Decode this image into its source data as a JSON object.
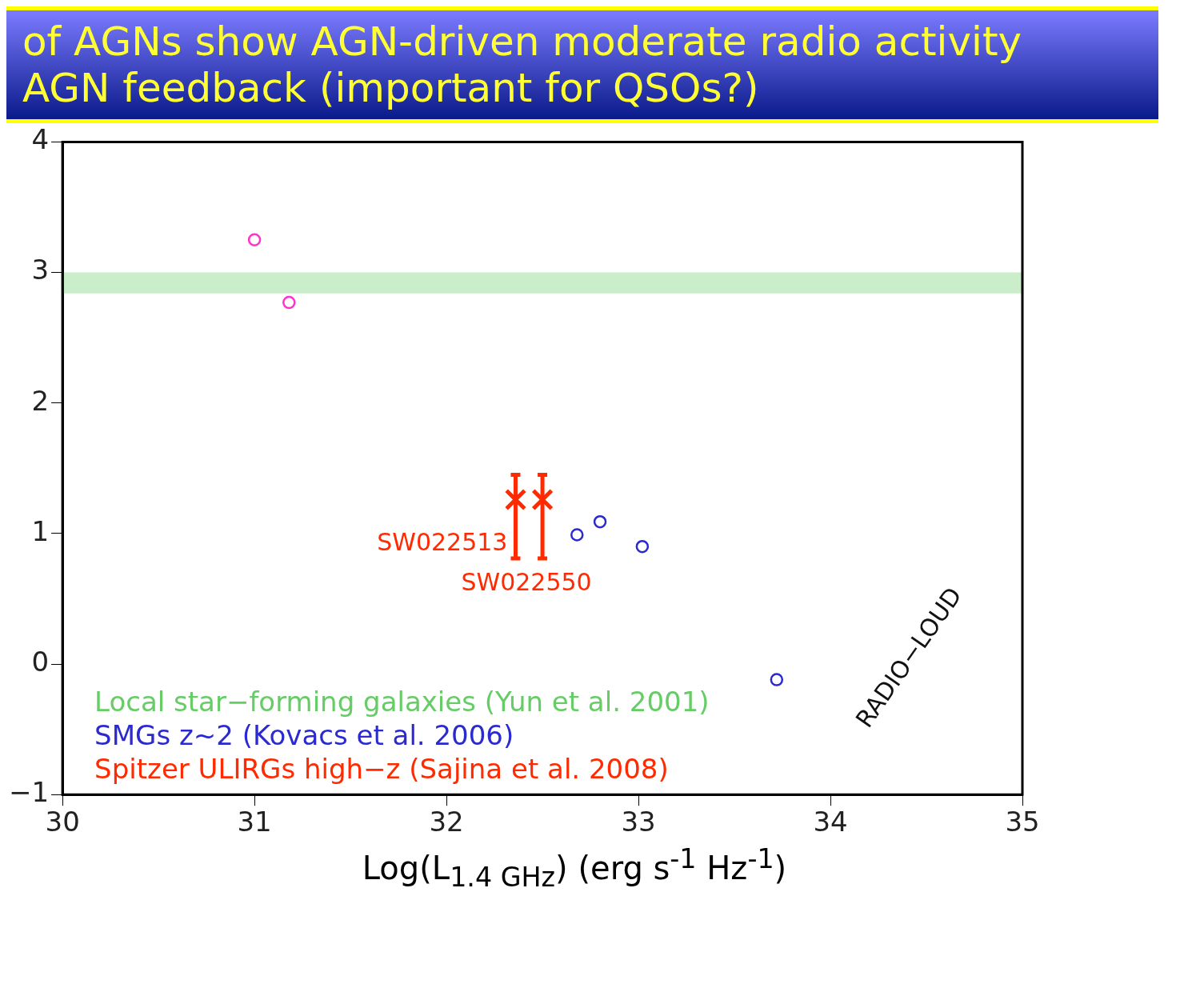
{
  "chart_data": {
    "type": "scatter",
    "title": "of AGNs show AGN-driven moderate radio activity",
    "subtitle": "AGN feedback (important for QSOs?)",
    "xlabel": "Log(L$_{1.4 GHz}$) (erg s$^{-1}$ Hz$^{-1}$)",
    "xlim": [
      30,
      35
    ],
    "xticks": [
      30,
      31,
      32,
      33,
      34,
      35
    ],
    "ylim": [
      -1,
      4
    ],
    "yticks": [
      -1,
      0,
      1,
      2,
      3,
      4
    ],
    "grid": false,
    "legend": "bottom left",
    "marker": "circle",
    "series": [
      {
        "color": "#ff33cc",
        "x": [
          31.0,
          31.18
        ],
        "values": [
          3.25,
          2.77
        ]
      },
      {
        "name": "SMGs z~2 (Kovacs et al. 2006)",
        "color": "#2a2ad0",
        "x": [
          32.68,
          32.8,
          33.02,
          33.72
        ],
        "values": [
          0.99,
          1.09,
          0.9,
          -0.12
        ]
      },
      {
        "name": "Spitzer ULIRGs high−z (Sajina et al. 2008)",
        "color": "#ff2a00",
        "marker": "cross",
        "x": [
          32.36,
          32.5
        ],
        "values": [
          1.26,
          1.26
        ],
        "errors": [
          [
            0.81,
            1.45
          ],
          [
            0.81,
            1.45
          ]
        ]
      }
    ],
    "bands": [
      {
        "axis": "y",
        "from": 2.84,
        "to": 3.0,
        "label": "Local star−forming galaxies (Yun et al. 2001)",
        "color": "#66cc66"
      }
    ],
    "annotations": [
      {
        "text": "SW022513",
        "x": 32.36,
        "y": 1.26
      },
      {
        "text": "SW022550",
        "x": 32.5,
        "y": 1.26
      },
      "RADIO−LOUD"
    ]
  }
}
